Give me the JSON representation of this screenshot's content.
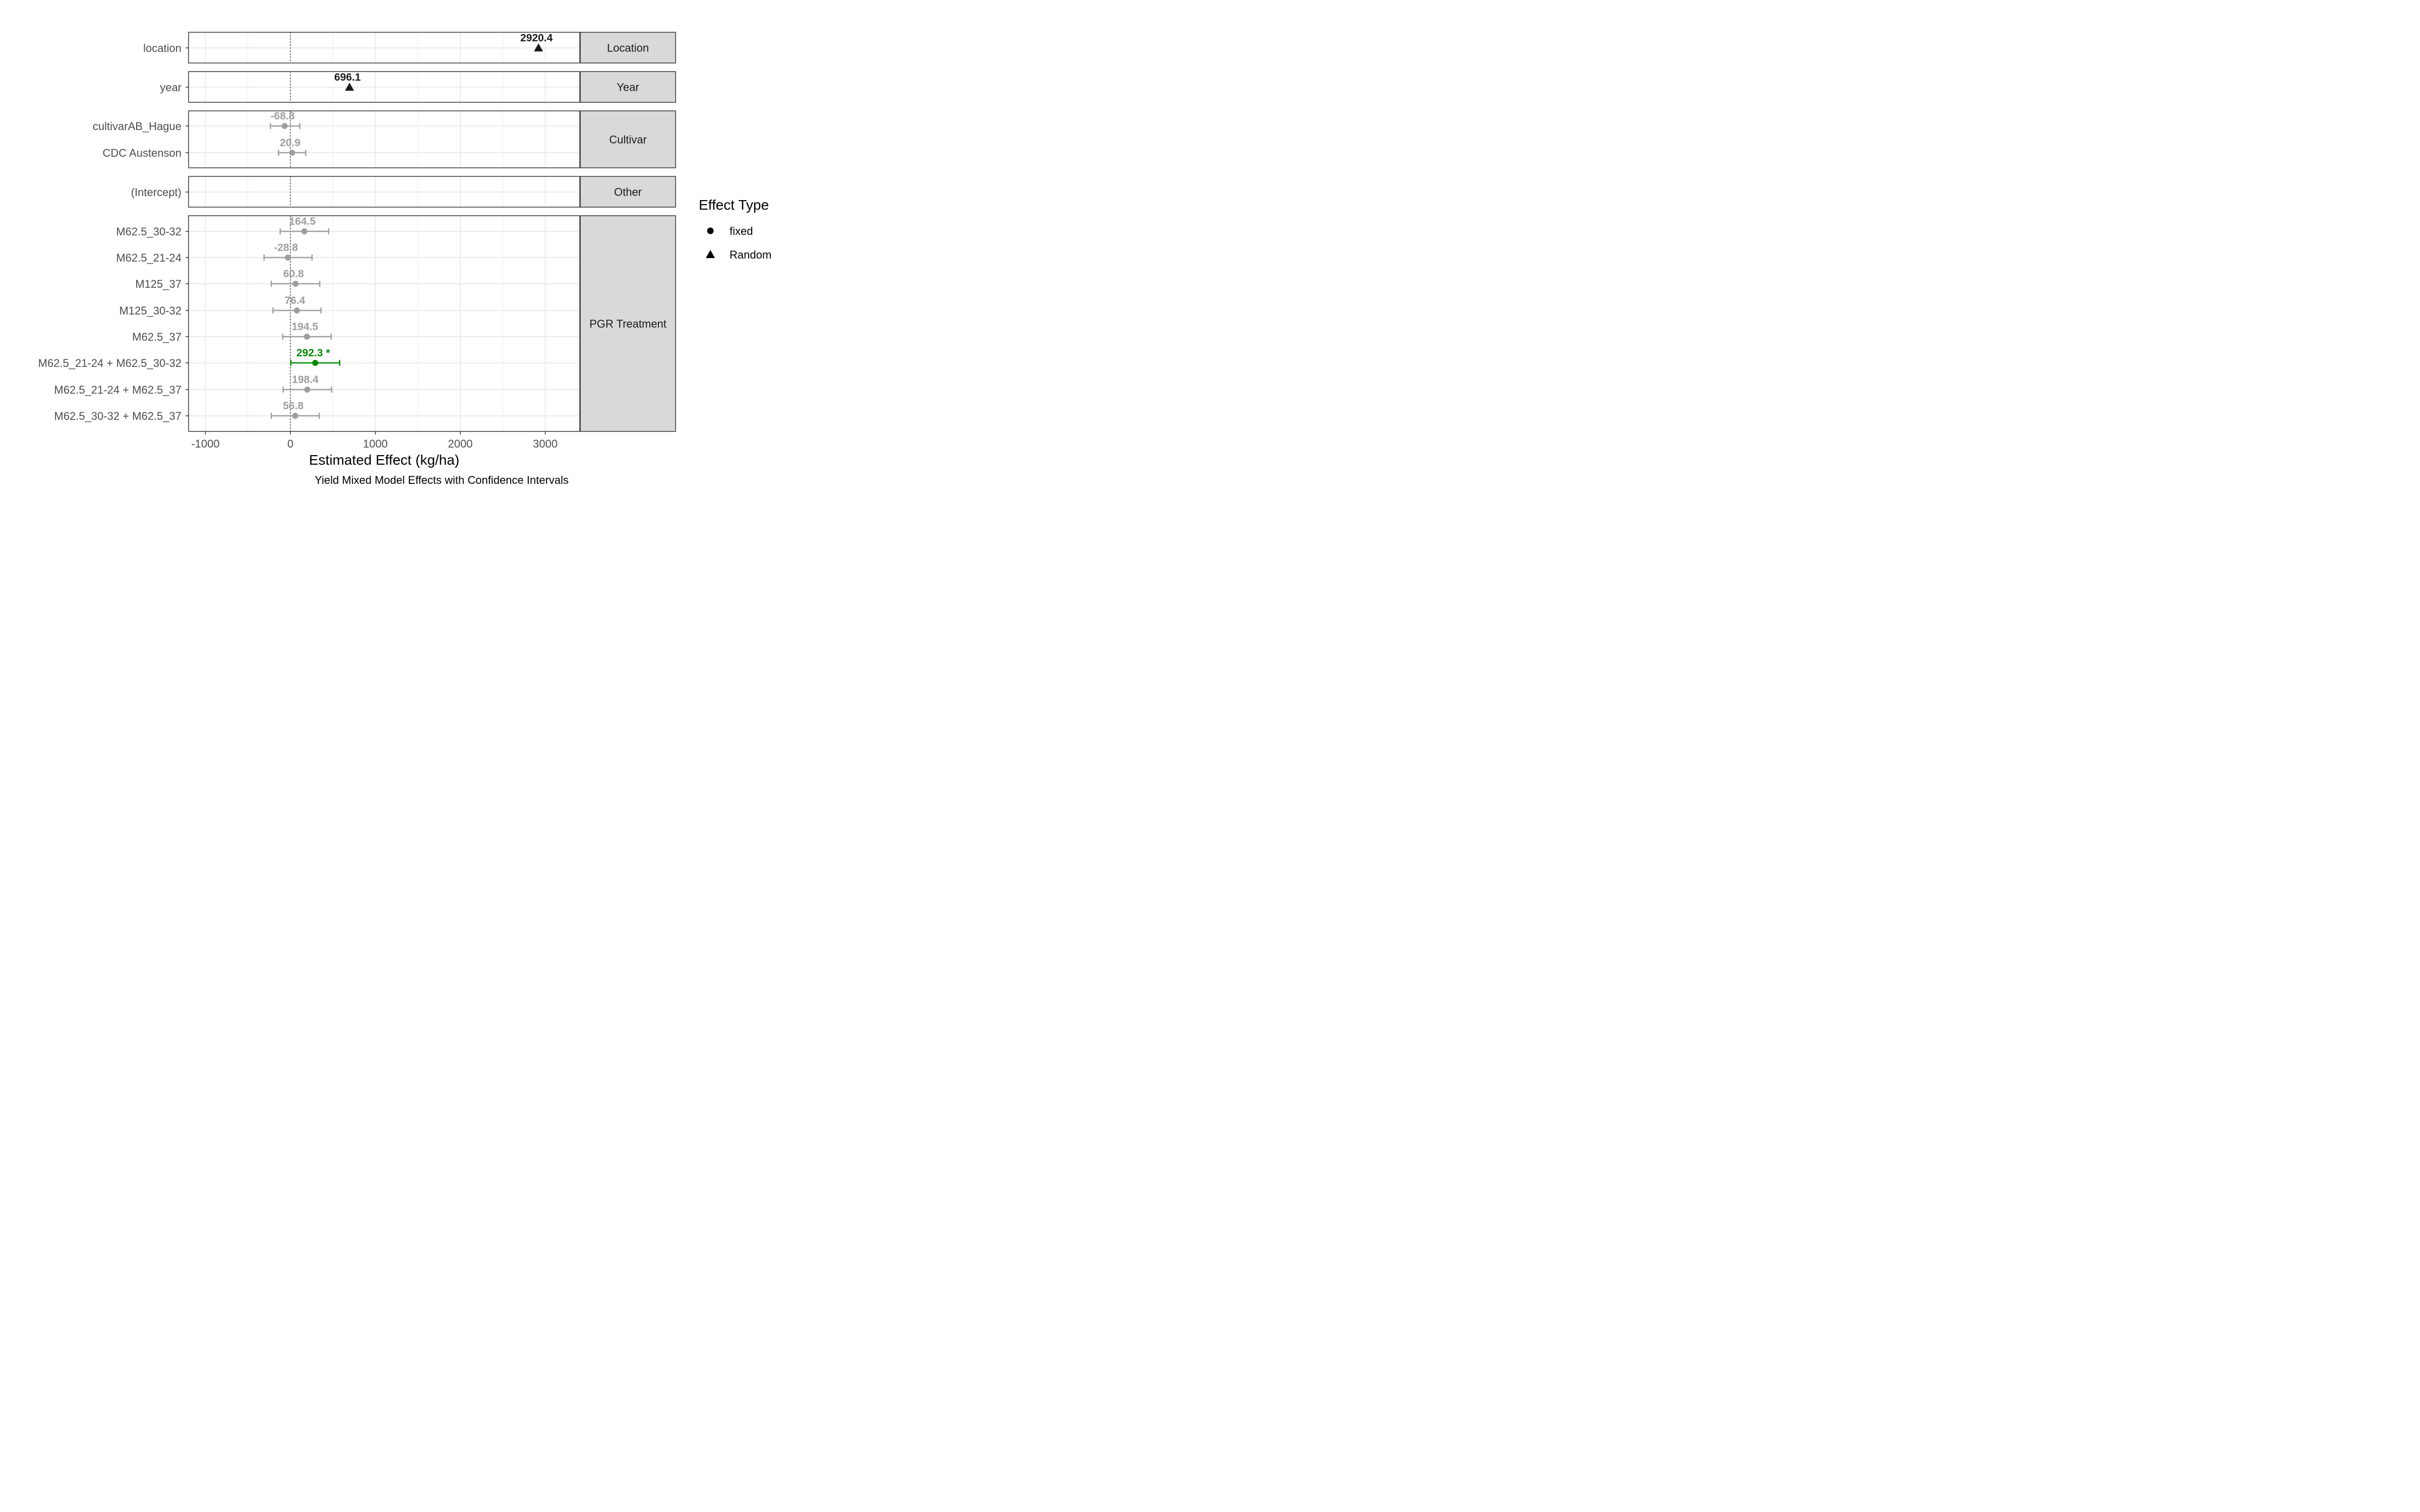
{
  "chart_data": {
    "type": "scatter",
    "subtype": "coefficient-plot-with-error-bars",
    "xlabel": "Estimated Effect (kg/ha)",
    "caption": "Yield Mixed Model Effects with Confidence Intervals",
    "xlim": [
      -1200,
      3420
    ],
    "x_ticks": [
      -1000,
      0,
      1000,
      2000,
      3000
    ],
    "x_tick_labels": [
      "-1000",
      "0",
      "1000",
      "2000",
      "3000"
    ],
    "reference_line_x": 0,
    "grid": true,
    "legend": {
      "title": "Effect Type",
      "position": "right",
      "entries": [
        {
          "label": "fixed",
          "shape": "circle"
        },
        {
          "label": "Random",
          "shape": "triangle"
        }
      ]
    },
    "colors": {
      "random": "#1a1a1a",
      "non_significant": "#9e9e9e",
      "significant": "#008b00",
      "strip_fill": "#d9d9d9",
      "panel_border": "#333333",
      "grid": "#ebebeb"
    },
    "facets": [
      {
        "strip_label": "Location",
        "terms": [
          {
            "term": "location",
            "estimate": 2920.4,
            "ci_low": null,
            "ci_high": null,
            "effect_type": "Random",
            "label": "2920.4",
            "significant": false
          }
        ]
      },
      {
        "strip_label": "Year",
        "terms": [
          {
            "term": "year",
            "estimate": 696.1,
            "ci_low": null,
            "ci_high": null,
            "effect_type": "Random",
            "label": "696.1",
            "significant": false
          }
        ]
      },
      {
        "strip_label": "Cultivar",
        "terms": [
          {
            "term": "cultivarAB_Hague",
            "estimate": -68.8,
            "ci_low": -235,
            "ci_high": 110,
            "effect_type": "fixed",
            "label": "-68.8",
            "significant": false
          },
          {
            "term": "CDC Austenson",
            "estimate": 20.9,
            "ci_low": -140,
            "ci_high": 180,
            "effect_type": "fixed",
            "label": "20.9",
            "significant": false
          }
        ]
      },
      {
        "strip_label": "Other",
        "terms": [
          {
            "term": "(Intercept)",
            "estimate": null,
            "ci_low": null,
            "ci_high": null,
            "effect_type": "fixed",
            "label": "",
            "significant": false
          }
        ]
      },
      {
        "strip_label": "PGR Treatment",
        "terms": [
          {
            "term": "M62.5_30-32",
            "estimate": 164.5,
            "ci_low": -120,
            "ci_high": 450,
            "effect_type": "fixed",
            "label": "164.5",
            "significant": false
          },
          {
            "term": "M62.5_21-24",
            "estimate": -28.8,
            "ci_low": -310,
            "ci_high": 255,
            "effect_type": "fixed",
            "label": "-28.8",
            "significant": false
          },
          {
            "term": "M125_37",
            "estimate": 60.8,
            "ci_low": -225,
            "ci_high": 345,
            "effect_type": "fixed",
            "label": "60.8",
            "significant": false
          },
          {
            "term": "M125_30-32",
            "estimate": 76.4,
            "ci_low": -205,
            "ci_high": 360,
            "effect_type": "fixed",
            "label": "76.4",
            "significant": false
          },
          {
            "term": "M62.5_37",
            "estimate": 194.5,
            "ci_low": -90,
            "ci_high": 480,
            "effect_type": "fixed",
            "label": "194.5",
            "significant": false
          },
          {
            "term": "M62.5_21-24 + M62.5_30-32",
            "estimate": 292.3,
            "ci_low": 5,
            "ci_high": 580,
            "effect_type": "fixed",
            "label": "292.3 *",
            "significant": true
          },
          {
            "term": "M62.5_21-24 + M62.5_37",
            "estimate": 198.4,
            "ci_low": -85,
            "ci_high": 485,
            "effect_type": "fixed",
            "label": "198.4",
            "significant": false
          },
          {
            "term": "M62.5_30-32 + M62.5_37",
            "estimate": 56.8,
            "ci_low": -225,
            "ci_high": 340,
            "effect_type": "fixed",
            "label": "56.8",
            "significant": false
          }
        ]
      }
    ]
  }
}
